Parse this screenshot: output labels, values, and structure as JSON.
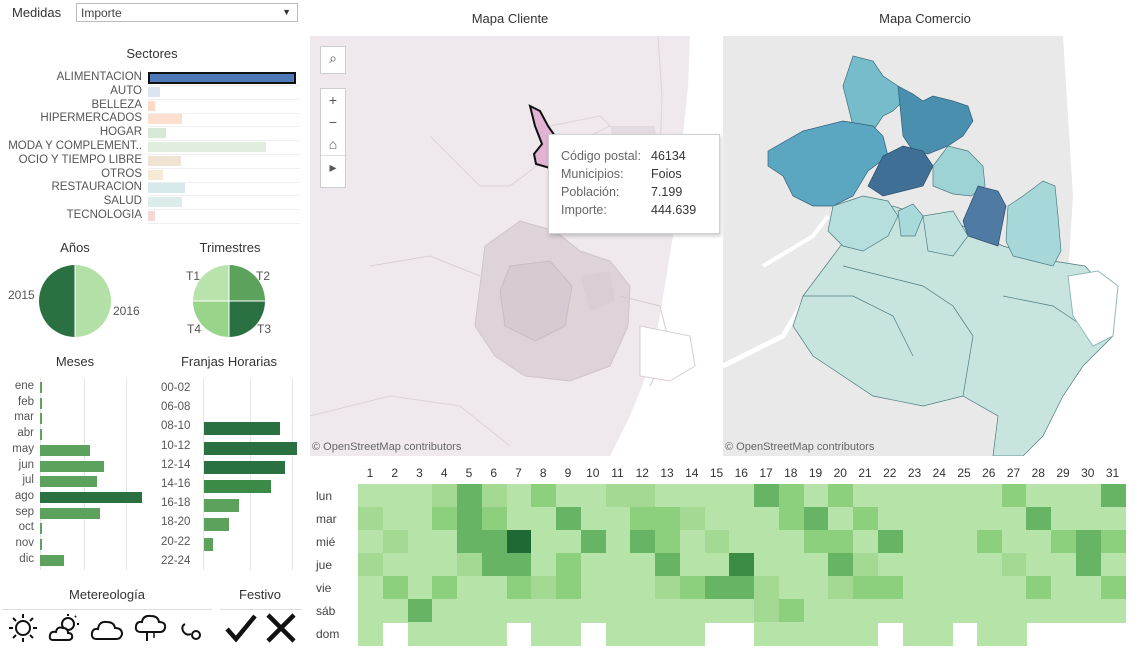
{
  "controls": {
    "measure_label": "Medidas",
    "measure_value": "Importe"
  },
  "sectores": {
    "title": "Sectores",
    "items": [
      {
        "label": "ALIMENTACION",
        "value": 1.0,
        "color": "#4e79b7"
      },
      {
        "label": "AUTO",
        "value": 0.08,
        "color": "#dbe4f1"
      },
      {
        "label": "BELLEZA",
        "value": 0.05,
        "color": "#fcd9c6"
      },
      {
        "label": "HIPERMERCADOS",
        "value": 0.23,
        "color": "#fbe0cf"
      },
      {
        "label": "HOGAR",
        "value": 0.12,
        "color": "#d7e8d6"
      },
      {
        "label": "MODA Y COMPLEMENT..",
        "value": 0.8,
        "color": "#dfeedd"
      },
      {
        "label": "OCIO Y TIEMPO LIBRE",
        "value": 0.22,
        "color": "#efe3d3"
      },
      {
        "label": "OTROS",
        "value": 0.1,
        "color": "#f7ead5"
      },
      {
        "label": "RESTAURACION",
        "value": 0.25,
        "color": "#d8e9ec"
      },
      {
        "label": "SALUD",
        "value": 0.23,
        "color": "#dceceb"
      },
      {
        "label": "TECNOLOGIA",
        "value": 0.05,
        "color": "#fad6d7"
      }
    ]
  },
  "anios": {
    "title": "Años",
    "labels": [
      "2015",
      "2016"
    ]
  },
  "trimestres": {
    "title": "Trimestres",
    "labels": [
      "T1",
      "T2",
      "T3",
      "T4"
    ]
  },
  "meses": {
    "title": "Meses",
    "items": [
      {
        "label": "ene",
        "value": 0.02
      },
      {
        "label": "feb",
        "value": 0.02
      },
      {
        "label": "mar",
        "value": 0.02
      },
      {
        "label": "abr",
        "value": 0.02
      },
      {
        "label": "may",
        "value": 0.49
      },
      {
        "label": "jun",
        "value": 0.63
      },
      {
        "label": "jul",
        "value": 0.56
      },
      {
        "label": "ago",
        "value": 1.0
      },
      {
        "label": "sep",
        "value": 0.59
      },
      {
        "label": "oct",
        "value": 0.02
      },
      {
        "label": "nov",
        "value": 0.02
      },
      {
        "label": "dic",
        "value": 0.24
      }
    ]
  },
  "franjas": {
    "title": "Franjas Horarias",
    "items": [
      {
        "label": "00-02",
        "value": 0
      },
      {
        "label": "06-08",
        "value": 0
      },
      {
        "label": "08-10",
        "value": 0.82
      },
      {
        "label": "10-12",
        "value": 1.0
      },
      {
        "label": "12-14",
        "value": 0.87
      },
      {
        "label": "14-16",
        "value": 0.72
      },
      {
        "label": "16-18",
        "value": 0.38
      },
      {
        "label": "18-20",
        "value": 0.27
      },
      {
        "label": "20-22",
        "value": 0.1
      },
      {
        "label": "22-24",
        "value": 0
      }
    ]
  },
  "meteo": {
    "title": "Metereología",
    "icons": [
      "sun-icon",
      "partly-cloudy-icon",
      "cloud-icon",
      "rain-cloud-icon",
      "wind-icon"
    ]
  },
  "festivo": {
    "title": "Festivo",
    "icons": [
      "check-icon",
      "x-icon"
    ]
  },
  "maps": {
    "cliente_title": "Mapa Cliente",
    "comercio_title": "Mapa Comercio",
    "attribution": "© OpenStreetMap contributors"
  },
  "tooltip": {
    "rows": [
      {
        "key": "Código postal:",
        "value": "46134"
      },
      {
        "key": "Municipios:",
        "value": "Foios"
      },
      {
        "key": "Población:",
        "value": "7.199"
      },
      {
        "key": "Importe:",
        "value": "444.639"
      }
    ]
  },
  "heatmap": {
    "days": [
      "1",
      "2",
      "3",
      "4",
      "5",
      "6",
      "7",
      "8",
      "9",
      "10",
      "11",
      "12",
      "13",
      "14",
      "15",
      "16",
      "17",
      "18",
      "19",
      "20",
      "21",
      "22",
      "23",
      "24",
      "25",
      "26",
      "27",
      "28",
      "29",
      "30",
      "31"
    ],
    "weekdays": [
      "lun",
      "mar",
      "mié",
      "jue",
      "vie",
      "sáb",
      "dom"
    ],
    "levels": [
      [
        2,
        2,
        2,
        3,
        5,
        3,
        2,
        4,
        2,
        2,
        3,
        3,
        2,
        2,
        2,
        2,
        5,
        4,
        2,
        4,
        2,
        2,
        2,
        2,
        2,
        2,
        4,
        2,
        2,
        2,
        5
      ],
      [
        3,
        2,
        2,
        4,
        5,
        4,
        2,
        2,
        5,
        2,
        2,
        4,
        4,
        3,
        2,
        2,
        2,
        4,
        5,
        2,
        4,
        2,
        2,
        2,
        2,
        2,
        2,
        5,
        2,
        2,
        2
      ],
      [
        2,
        3,
        2,
        2,
        5,
        5,
        8,
        2,
        2,
        5,
        2,
        5,
        4,
        2,
        3,
        2,
        2,
        2,
        4,
        4,
        2,
        5,
        2,
        2,
        2,
        4,
        2,
        2,
        4,
        5,
        4
      ],
      [
        3,
        2,
        2,
        2,
        3,
        5,
        5,
        2,
        4,
        2,
        2,
        2,
        5,
        2,
        2,
        7,
        2,
        2,
        2,
        5,
        3,
        2,
        2,
        2,
        2,
        2,
        3,
        2,
        2,
        5,
        2
      ],
      [
        2,
        4,
        2,
        4,
        2,
        2,
        4,
        3,
        4,
        2,
        2,
        2,
        3,
        4,
        5,
        5,
        3,
        2,
        2,
        3,
        4,
        4,
        2,
        2,
        2,
        2,
        2,
        4,
        2,
        2,
        4
      ],
      [
        2,
        2,
        5,
        2,
        2,
        2,
        2,
        2,
        2,
        2,
        2,
        2,
        2,
        2,
        2,
        2,
        3,
        4,
        2,
        2,
        2,
        2,
        2,
        2,
        2,
        2,
        2,
        2,
        2,
        2,
        2
      ],
      [
        2,
        0,
        2,
        2,
        2,
        2,
        0,
        2,
        2,
        0,
        2,
        2,
        2,
        2,
        0,
        0,
        2,
        2,
        2,
        2,
        2,
        0,
        2,
        2,
        0,
        2,
        2,
        1,
        1,
        1,
        1
      ]
    ]
  },
  "colors": {
    "accent_blue": "#4e79b7",
    "green_dark": "#2a7040",
    "green_mid": "#5ca25c",
    "green_light": "#b3e0a6"
  }
}
